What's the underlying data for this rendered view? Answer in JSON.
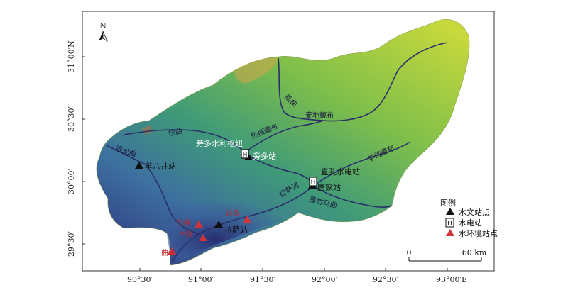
{
  "north_arrow": {
    "label": "N"
  },
  "axes": {
    "x_ticks": [
      "90°30′",
      "91°00′",
      "91°30′",
      "92°00′",
      "92°30′",
      "93°00′E"
    ],
    "y_ticks": [
      "31°00′N",
      "30°30′",
      "30°00′",
      "29°30′"
    ]
  },
  "rivers": {
    "lhasa_he": "拉曲",
    "sang_qu": "桑曲",
    "maidi_zangbu": "麦地藏布",
    "rezhen_zangbu": "热振藏布",
    "duilong_qu": "堆龙曲",
    "xuerong_zangbu": "学绒藏布",
    "mozhu_maqu": "墨竹马曲",
    "lhasa_river": "拉萨河"
  },
  "stations": {
    "yangbajing": "羊八井站",
    "pangduo_hub": "旁多水利枢纽",
    "pangduo": "旁多站",
    "zhikong": "直孔水电站",
    "tangjia": "唐家站",
    "lhasa": "拉萨站",
    "dazi": "达孜",
    "dongga": "东嘎",
    "kazang": "卡孜",
    "qushui": "曲水"
  },
  "legend": {
    "title": "图例",
    "items": [
      {
        "symbol": "triangle-black",
        "label": "水文站点"
      },
      {
        "symbol": "square-h",
        "label": "水电站"
      },
      {
        "symbol": "triangle-red",
        "label": "水环境站点"
      }
    ]
  },
  "scale_bar": {
    "zero": "0",
    "end": "60 km"
  },
  "colors": {
    "low_elevation": "#3b3f8a",
    "mid_elevation": "#4aa36a",
    "high_elevation": "#c8d83a",
    "peak": "#e8a030",
    "river": "#2a2f6b",
    "env_station": "#d0343a",
    "hydro_station": "#111111"
  }
}
